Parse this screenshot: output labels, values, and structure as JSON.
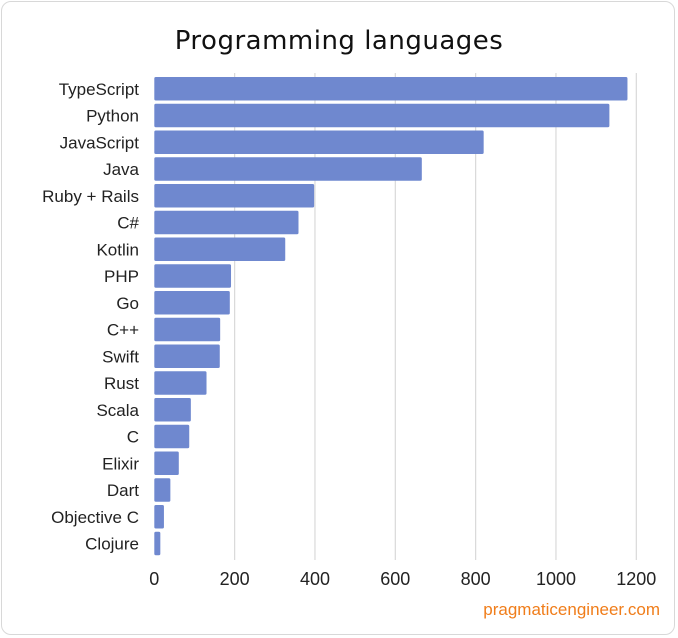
{
  "chart_data": {
    "type": "bar",
    "orientation": "horizontal",
    "title": "Programming languages",
    "categories": [
      "TypeScript",
      "Python",
      "JavaScript",
      "Java",
      "Ruby + Rails",
      "C#",
      "Kotlin",
      "PHP",
      "Go",
      "C++",
      "Swift",
      "Rust",
      "Scala",
      "C",
      "Elixir",
      "Dart",
      "Objective C",
      "Clojure"
    ],
    "values": [
      1178,
      1133,
      820,
      666,
      398,
      359,
      326,
      191,
      188,
      164,
      163,
      130,
      91,
      87,
      61,
      40,
      24,
      15
    ],
    "xlim": [
      0,
      1200
    ],
    "xticks": [
      0,
      200,
      400,
      600,
      800,
      1000,
      1200
    ],
    "xlabel": "",
    "ylabel": "",
    "grid": "vertical",
    "bar_color": "#6f88cf",
    "grid_color": "#d9d9d9"
  },
  "watermark": {
    "text": "pragmaticengineer.com",
    "color": "#f07d1a"
  }
}
